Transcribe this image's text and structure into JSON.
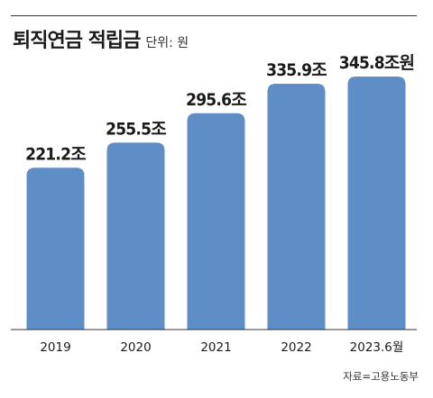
{
  "title": "퇴직연금 적립금",
  "unit_label": "단위: 원",
  "source": "자료=고용노동부",
  "colors": {
    "bar": "#5f8ec6",
    "axis": "#333333",
    "text": "#1a1a1a"
  },
  "chart_data": {
    "type": "bar",
    "title": "퇴직연금 적립금",
    "categories": [
      "2019",
      "2020",
      "2021",
      "2022",
      "2023.6월"
    ],
    "values": [
      221.2,
      255.5,
      295.6,
      335.9,
      345.8
    ],
    "value_labels": [
      "221.2조",
      "255.5조",
      "295.6조",
      "335.9조",
      "345.8조원"
    ],
    "xlabel": "",
    "ylabel": "",
    "ylim": [
      0,
      345.8
    ],
    "grid": false,
    "legend": "none"
  }
}
